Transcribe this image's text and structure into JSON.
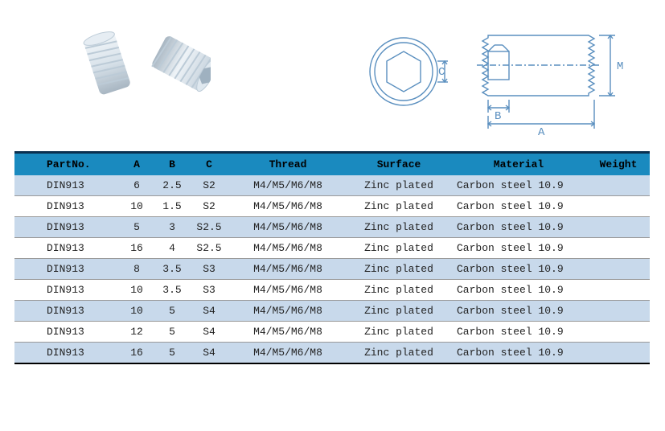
{
  "diagram": {
    "label_c": "C",
    "label_b": "B",
    "label_a": "A",
    "label_m": "M",
    "stroke": "#5a8fbf",
    "thread_color": "#5a8fbf"
  },
  "screw_render": {
    "body": "#d8e2ea",
    "hilite": "#f2f6f9",
    "shadow": "#a8b6c2"
  },
  "table": {
    "header_bg": "#1a8abf",
    "row_odd_bg": "#c8d9eb",
    "row_even_bg": "#ffffff",
    "columns": [
      "PartNo.",
      "A",
      "B",
      "C",
      "Thread",
      "Surface",
      "Material",
      "Weight"
    ],
    "rows": [
      [
        "DIN913",
        "6",
        "2.5",
        "S2",
        "M4/M5/M6/M8",
        "Zinc plated",
        "Carbon steel 10.9",
        ""
      ],
      [
        "DIN913",
        "10",
        "1.5",
        "S2",
        "M4/M5/M6/M8",
        "Zinc plated",
        "Carbon steel 10.9",
        ""
      ],
      [
        "DIN913",
        "5",
        "3",
        "S2.5",
        "M4/M5/M6/M8",
        "Zinc plated",
        "Carbon steel 10.9",
        ""
      ],
      [
        "DIN913",
        "16",
        "4",
        "S2.5",
        "M4/M5/M6/M8",
        "Zinc plated",
        "Carbon steel 10.9",
        ""
      ],
      [
        "DIN913",
        "8",
        "3.5",
        "S3",
        "M4/M5/M6/M8",
        "Zinc plated",
        "Carbon steel 10.9",
        ""
      ],
      [
        "DIN913",
        "10",
        "3.5",
        "S3",
        "M4/M5/M6/M8",
        "Zinc plated",
        "Carbon steel 10.9",
        ""
      ],
      [
        "DIN913",
        "10",
        "5",
        "S4",
        "M4/M5/M6/M8",
        "Zinc plated",
        "Carbon steel 10.9",
        ""
      ],
      [
        "DIN913",
        "12",
        "5",
        "S4",
        "M4/M5/M6/M8",
        "Zinc plated",
        "Carbon steel 10.9",
        ""
      ],
      [
        "DIN913",
        "16",
        "5",
        "S4",
        "M4/M5/M6/M8",
        "Zinc plated",
        "Carbon steel 10.9",
        ""
      ]
    ]
  }
}
